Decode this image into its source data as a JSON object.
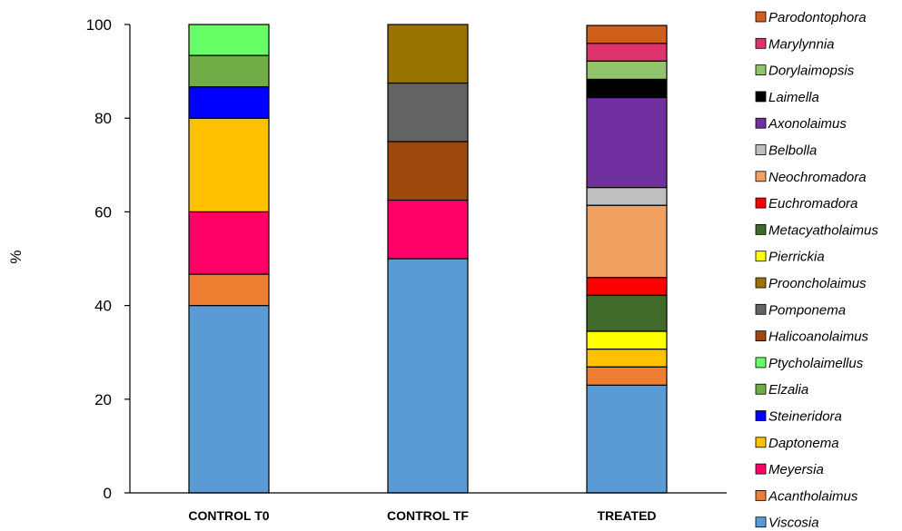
{
  "chart_data": {
    "type": "bar",
    "stacked": true,
    "title": "",
    "xlabel": "",
    "ylabel": "%",
    "ylim": [
      0,
      100
    ],
    "yticks": [
      0,
      20,
      40,
      60,
      80,
      100
    ],
    "grid": false,
    "legend_position": "right",
    "categories": [
      "CONTROL T0",
      "CONTROL TF",
      "TREATED"
    ],
    "series": [
      {
        "name": "Viscosia",
        "color": "#5B9BD5",
        "values": [
          40,
          50,
          23
        ]
      },
      {
        "name": "Acantholaimus",
        "color": "#ED7D31",
        "values": [
          6.7,
          0,
          3.9
        ]
      },
      {
        "name": "Meyersia",
        "color": "#FF0066",
        "values": [
          13.3,
          12.5,
          0
        ]
      },
      {
        "name": "Daptonema",
        "color": "#FFC000",
        "values": [
          20,
          0,
          3.8
        ]
      },
      {
        "name": "Steineridora",
        "color": "#0000FF",
        "values": [
          6.7,
          0,
          0
        ]
      },
      {
        "name": "Elzalia",
        "color": "#70AD47",
        "values": [
          6.7,
          0,
          0
        ]
      },
      {
        "name": "Ptycholaimellus",
        "color": "#66FF66",
        "values": [
          6.6,
          0,
          0
        ]
      },
      {
        "name": "Halicoanolaimus",
        "color": "#9E480E",
        "values": [
          0,
          12.5,
          0
        ]
      },
      {
        "name": "Pomponema",
        "color": "#636363",
        "values": [
          0,
          12.5,
          0
        ]
      },
      {
        "name": "Prooncholaimus",
        "color": "#997300",
        "values": [
          0,
          12.5,
          0
        ]
      },
      {
        "name": "Pierrickia",
        "color": "#FFFF00",
        "values": [
          0,
          0,
          3.8
        ]
      },
      {
        "name": "Metacyatholaimus",
        "color": "#3F6A29",
        "values": [
          0,
          0,
          7.7
        ]
      },
      {
        "name": "Euchromadora",
        "color": "#FF0000",
        "values": [
          0,
          0,
          3.8
        ]
      },
      {
        "name": "Neochromadora",
        "color": "#F0A060",
        "values": [
          0,
          0,
          15.4
        ]
      },
      {
        "name": "Belbolla",
        "color": "#BFBFBF",
        "values": [
          0,
          0,
          3.8
        ]
      },
      {
        "name": "Axonolaimus",
        "color": "#7030A0",
        "values": [
          0,
          0,
          19.2
        ]
      },
      {
        "name": "Laimella",
        "color": "#000000",
        "values": [
          0,
          0,
          3.9
        ]
      },
      {
        "name": "Dorylaimopsis",
        "color": "#92C46C",
        "values": [
          0,
          0,
          3.9
        ]
      },
      {
        "name": "Marylynnia",
        "color": "#E0336E",
        "values": [
          0,
          0,
          3.8
        ]
      },
      {
        "name": "Parodontophora",
        "color": "#D05F1A",
        "values": [
          0,
          0,
          3.8
        ]
      }
    ]
  }
}
